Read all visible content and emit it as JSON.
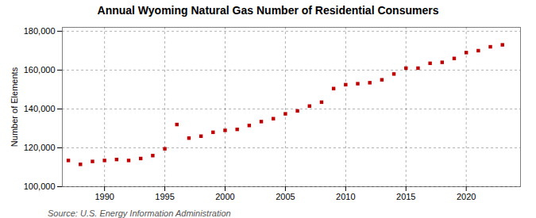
{
  "chart_data": {
    "type": "scatter",
    "title": "Annual Wyoming Natural Gas Number of Residential Consumers",
    "ylabel": "Number of Elements",
    "source": "Source: U.S. Energy Information Administration",
    "x": [
      1987,
      1988,
      1989,
      1990,
      1991,
      1992,
      1993,
      1994,
      1995,
      1996,
      1997,
      1998,
      1999,
      2000,
      2001,
      2002,
      2003,
      2004,
      2005,
      2006,
      2007,
      2008,
      2009,
      2010,
      2011,
      2012,
      2013,
      2014,
      2015,
      2016,
      2017,
      2018,
      2019,
      2020,
      2021,
      2022,
      2023
    ],
    "values": [
      113500,
      111500,
      113000,
      113500,
      114000,
      113500,
      114500,
      116000,
      119500,
      132000,
      125000,
      126000,
      128000,
      129000,
      129500,
      131500,
      133500,
      135000,
      137500,
      139000,
      141500,
      143500,
      150500,
      152500,
      153000,
      153500,
      155000,
      158000,
      161000,
      161000,
      163500,
      164000,
      166000,
      169000,
      170000,
      172000,
      173000
    ],
    "color": "#c00000",
    "marker": "square",
    "xlim": [
      1986.5,
      2024.5
    ],
    "xticks": [
      1990,
      1995,
      2000,
      2005,
      2010,
      2015,
      2020
    ],
    "ylim": [
      100000,
      182000
    ],
    "yticks": [
      {
        "value": 100000,
        "label": "100,000"
      },
      {
        "value": 120000,
        "label": "120,000"
      },
      {
        "value": 140000,
        "label": "140,000"
      },
      {
        "value": 160000,
        "label": "160,000"
      },
      {
        "value": 180000,
        "label": "180,000"
      }
    ],
    "grid": true
  }
}
